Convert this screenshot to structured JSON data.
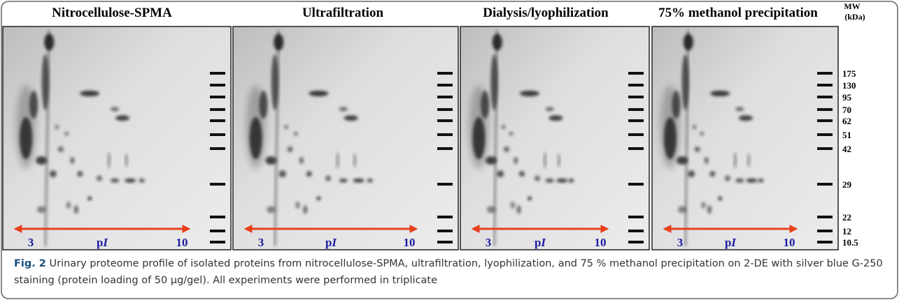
{
  "panels": [
    {
      "title": "Nitrocellulose-SPMA"
    },
    {
      "title": "Ultrafiltration"
    },
    {
      "title": "Dialysis/lyophilization"
    },
    {
      "title": "75% methanol precipitation"
    }
  ],
  "pi_axis": {
    "start": "3",
    "end": "10",
    "label": [
      "p",
      "I"
    ]
  },
  "mw_axis": {
    "title": "MW",
    "unit": "(kDa)",
    "labels": [
      "175",
      "130",
      "95",
      "70",
      "62",
      "51",
      "42",
      "29",
      "22",
      "12",
      "10.5"
    ]
  },
  "caption": {
    "label": "Fig. 2",
    "text": "Urinary proteome profile of isolated proteins from nitrocellulose-SPMA, ultrafiltration, lyophilization, and 75 % methanol precipitation on 2-DE with silver blue G-250 staining (protein loading of 50 μg/gel). All experiments were performed in triplicate"
  }
}
